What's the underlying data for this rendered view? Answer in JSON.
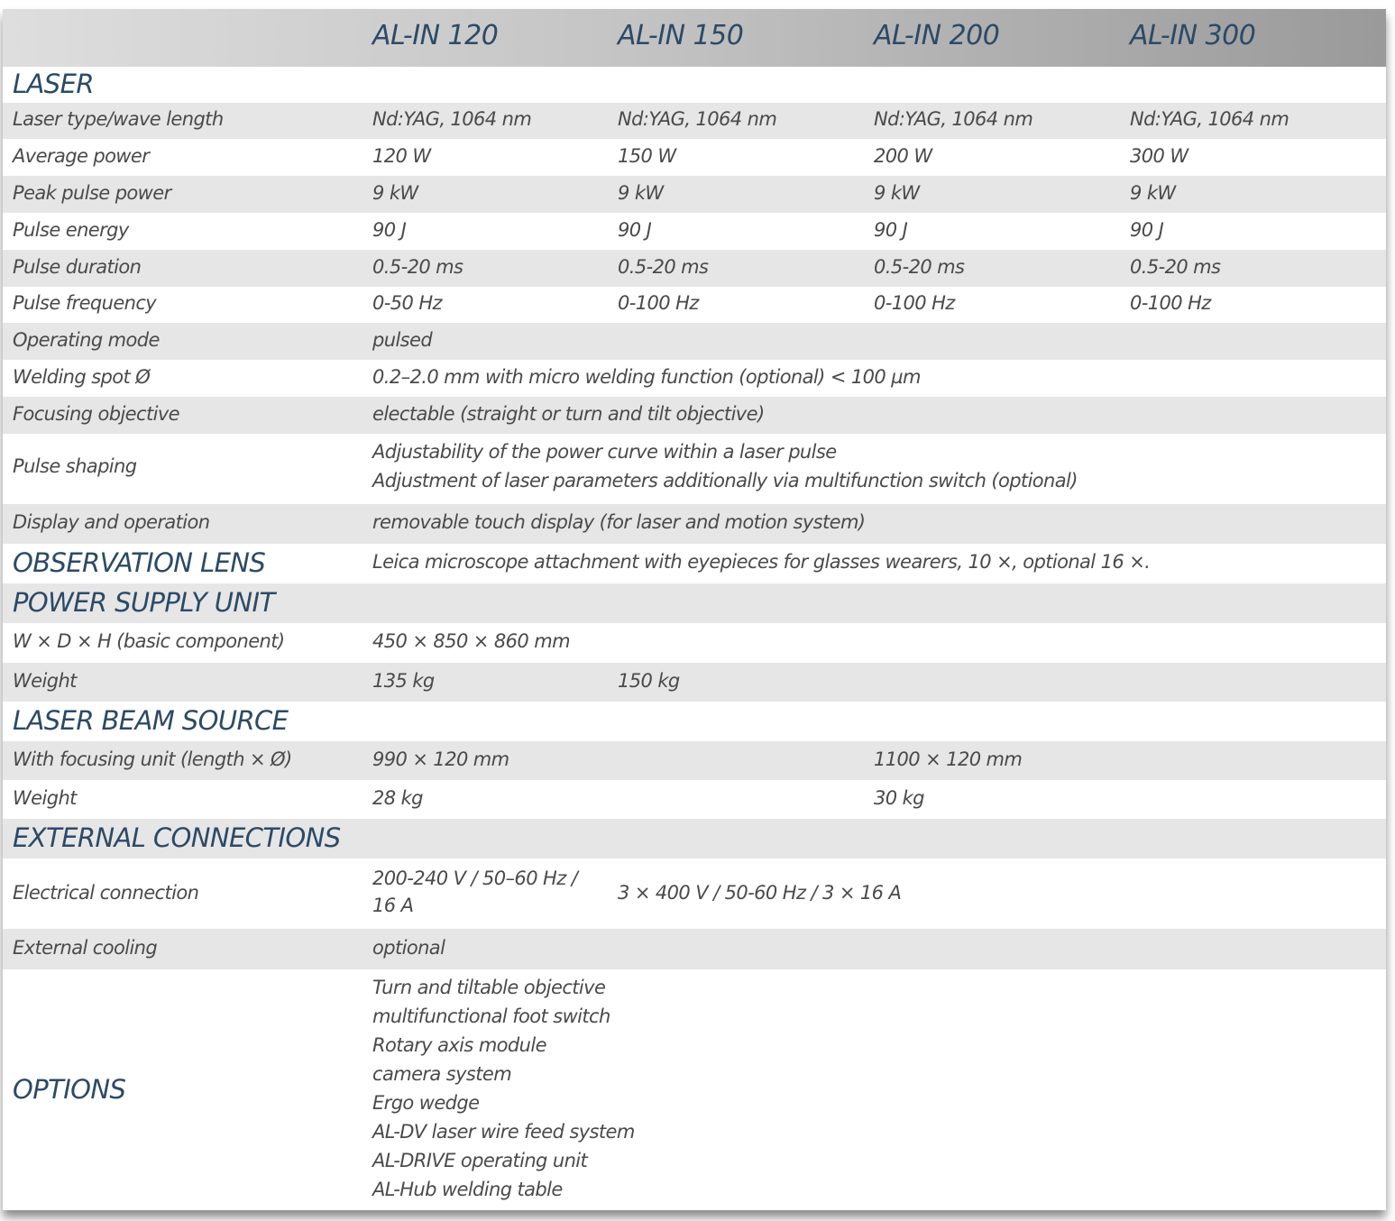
{
  "header": {
    "models": [
      "AL-IN 120",
      "AL-IN 150",
      "AL-IN 200",
      "AL-IN 300"
    ]
  },
  "laser": {
    "title": "LASER",
    "rows": [
      {
        "label": "Laser type/wave length",
        "values": [
          "Nd:YAG, 1064 nm",
          "Nd:YAG, 1064 nm",
          "Nd:YAG, 1064 nm",
          "Nd:YAG, 1064 nm"
        ]
      },
      {
        "label": "Average power",
        "values": [
          "120 W",
          "150 W",
          "200 W",
          "300 W"
        ]
      },
      {
        "label": "Peak pulse power",
        "values": [
          "9 kW",
          "9 kW",
          "9 kW",
          "9 kW"
        ]
      },
      {
        "label": "Pulse energy",
        "values": [
          "90 J",
          "90 J",
          "90 J",
          "90 J"
        ]
      },
      {
        "label": "Pulse duration",
        "values": [
          "0.5-20 ms",
          "0.5-20 ms",
          "0.5-20 ms",
          "0.5-20 ms"
        ]
      },
      {
        "label": "Pulse frequency",
        "values": [
          "0-50 Hz",
          "0-100 Hz",
          "0-100 Hz",
          "0-100 Hz"
        ]
      }
    ],
    "operating_mode": {
      "label": "Operating mode",
      "value": "pulsed"
    },
    "welding_spot": {
      "label": "Welding spot Ø",
      "value": "0.2–2.0 mm with micro welding function (optional) < 100 µm"
    },
    "focusing_objective": {
      "label": "Focusing objective",
      "value": "electable (straight or turn and tilt objective)"
    },
    "pulse_shaping": {
      "label": "Pulse shaping",
      "lines": [
        "Adjustability of the power curve within a laser pulse",
        "Adjustment of laser parameters additionally via multifunction switch (optional)"
      ]
    },
    "display": {
      "label": "Display and operation",
      "value": "removable touch display (for laser and motion system)"
    }
  },
  "observation_lens": {
    "title": "OBSERVATION LENS",
    "value": "Leica microscope attachment with eyepieces for glasses wearers, 10 ×, optional 16 ×."
  },
  "power_supply": {
    "title": "POWER SUPPLY UNIT",
    "dimensions": {
      "label": "W × D × H (basic component)",
      "value": "450 × 850 × 860 mm"
    },
    "weight": {
      "label": "Weight",
      "value_120": "135 kg",
      "value_150": "150 kg"
    }
  },
  "laser_beam_source": {
    "title": "LASER BEAM SOURCE",
    "focusing_unit": {
      "label": "With focusing unit (length × Ø)",
      "value_120_150": "990 × 120 mm",
      "value_200_300": "1100 × 120 mm"
    },
    "weight": {
      "label": "Weight",
      "value_120_150": "28 kg",
      "value_200_300": "30 kg"
    }
  },
  "external_connections": {
    "title": "EXTERNAL CONNECTIONS",
    "electrical": {
      "label": "Electrical connection",
      "value_120_line1": "200-240 V / 50–60 Hz /",
      "value_120_line2": "16 A",
      "value_other": "3 × 400 V / 50-60 Hz / 3 × 16 A"
    },
    "cooling": {
      "label": "External cooling",
      "value": "optional"
    }
  },
  "options": {
    "title": "OPTIONS",
    "items": [
      "Turn and tiltable objective",
      "multifunctional foot switch",
      "Rotary axis module",
      "camera system",
      "Ergo wedge",
      "AL-DV laser wire feed system",
      "AL-DRIVE operating unit",
      "AL-Hub welding table"
    ]
  },
  "colors": {
    "heading": "#2c4a66",
    "text": "#4a4a4a",
    "stripe": "#e6e6e6"
  }
}
